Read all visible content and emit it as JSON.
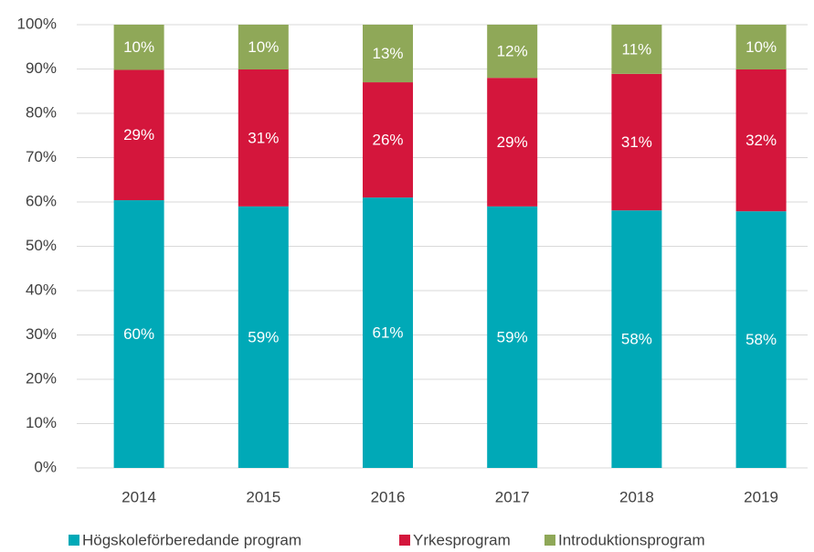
{
  "chart_data": {
    "type": "stacked_bar",
    "categories": [
      "2014",
      "2015",
      "2016",
      "2017",
      "2018",
      "2019"
    ],
    "series": [
      {
        "name": "Högskoleförberedande program",
        "color": "#00a9b7",
        "values": [
          60.4,
          59.0,
          61.0,
          59.0,
          58.1,
          57.9
        ],
        "value_labels": [
          "60%",
          "59%",
          "61%",
          "59%",
          "58%",
          "58%"
        ]
      },
      {
        "name": "Yrkesprogram",
        "color": "#d4163c",
        "values": [
          29.4,
          30.9,
          26.0,
          29.0,
          30.8,
          32.0
        ],
        "value_labels": [
          "29%",
          "31%",
          "26%",
          "29%",
          "31%",
          "32%"
        ]
      },
      {
        "name": "Introduktionsprogram",
        "color": "#8fa858",
        "values": [
          10.2,
          10.1,
          13.0,
          12.0,
          11.1,
          10.1
        ],
        "value_labels": [
          "10%",
          "10%",
          "13%",
          "12%",
          "11%",
          "10%"
        ]
      }
    ],
    "ylim": [
      0,
      100
    ],
    "yticks": [
      {
        "value": 0,
        "label": "0%"
      },
      {
        "value": 10,
        "label": "10%"
      },
      {
        "value": 20,
        "label": "20%"
      },
      {
        "value": 30,
        "label": "30%"
      },
      {
        "value": 40,
        "label": "40%"
      },
      {
        "value": 50,
        "label": "50%"
      },
      {
        "value": 60,
        "label": "60%"
      },
      {
        "value": 70,
        "label": "70%"
      },
      {
        "value": 80,
        "label": "80%"
      },
      {
        "value": 90,
        "label": "90%"
      },
      {
        "value": 100,
        "label": "100%"
      }
    ],
    "grid": true,
    "legend": "bottom"
  }
}
